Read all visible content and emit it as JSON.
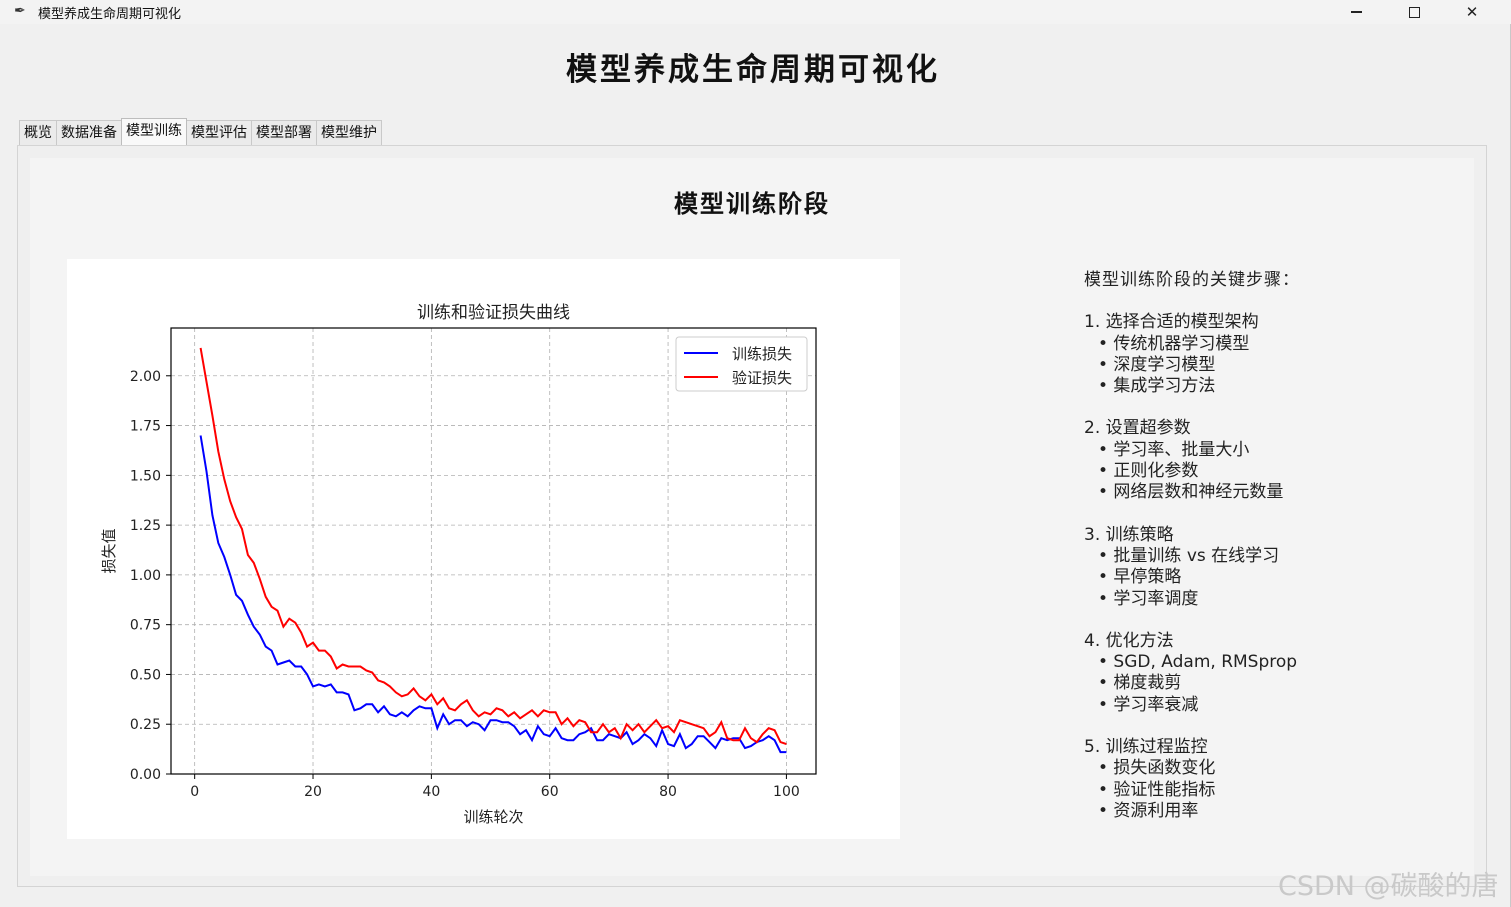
{
  "window": {
    "title": "模型养成生命周期可视化",
    "icon": "feather-icon"
  },
  "app": {
    "title": "模型养成生命周期可视化"
  },
  "tabs": [
    {
      "label": "概览",
      "active": false
    },
    {
      "label": "数据准备",
      "active": false
    },
    {
      "label": "模型训练",
      "active": true
    },
    {
      "label": "模型评估",
      "active": false
    },
    {
      "label": "模型部署",
      "active": false
    },
    {
      "label": "模型维护",
      "active": false
    }
  ],
  "stage": {
    "title": "模型训练阶段"
  },
  "chart_data": {
    "type": "line",
    "title": "训练和验证损失曲线",
    "xlabel": "训练轮次",
    "ylabel": "损失值",
    "xlim": [
      -4,
      105
    ],
    "ylim": [
      0,
      2.24
    ],
    "xticks": [
      0,
      20,
      40,
      60,
      80,
      100
    ],
    "xtick_labels": [
      "0",
      "20",
      "40",
      "60",
      "80",
      "100"
    ],
    "yticks": [
      0,
      0.25,
      0.5,
      0.75,
      1.0,
      1.25,
      1.5,
      1.75,
      2.0
    ],
    "ytick_labels": [
      "0.00",
      "0.25",
      "0.50",
      "0.75",
      "1.00",
      "1.25",
      "1.50",
      "1.75",
      "2.00"
    ],
    "grid": true,
    "legend": "top-right",
    "x": [
      1,
      2,
      3,
      4,
      5,
      6,
      7,
      8,
      9,
      10,
      11,
      12,
      13,
      14,
      15,
      16,
      17,
      18,
      19,
      20,
      21,
      22,
      23,
      24,
      25,
      26,
      27,
      28,
      29,
      30,
      31,
      32,
      33,
      34,
      35,
      36,
      37,
      38,
      39,
      40,
      41,
      42,
      43,
      44,
      45,
      46,
      47,
      48,
      49,
      50,
      51,
      52,
      53,
      54,
      55,
      56,
      57,
      58,
      59,
      60,
      61,
      62,
      63,
      64,
      65,
      66,
      67,
      68,
      69,
      70,
      71,
      72,
      73,
      74,
      75,
      76,
      77,
      78,
      79,
      80,
      81,
      82,
      83,
      84,
      85,
      86,
      87,
      88,
      89,
      90,
      91,
      92,
      93,
      94,
      95,
      96,
      97,
      98,
      99,
      100
    ],
    "series": [
      {
        "name": "训练损失",
        "color": "#0000ff",
        "values": [
          1.7,
          1.52,
          1.3,
          1.16,
          1.09,
          1.0,
          0.9,
          0.87,
          0.8,
          0.74,
          0.7,
          0.64,
          0.62,
          0.55,
          0.56,
          0.57,
          0.54,
          0.54,
          0.5,
          0.44,
          0.45,
          0.44,
          0.45,
          0.41,
          0.41,
          0.4,
          0.32,
          0.33,
          0.35,
          0.35,
          0.31,
          0.34,
          0.3,
          0.29,
          0.31,
          0.29,
          0.32,
          0.34,
          0.33,
          0.33,
          0.23,
          0.3,
          0.25,
          0.27,
          0.27,
          0.24,
          0.26,
          0.25,
          0.22,
          0.27,
          0.27,
          0.26,
          0.26,
          0.24,
          0.2,
          0.22,
          0.17,
          0.24,
          0.2,
          0.19,
          0.23,
          0.18,
          0.17,
          0.17,
          0.2,
          0.21,
          0.23,
          0.17,
          0.17,
          0.2,
          0.19,
          0.18,
          0.21,
          0.15,
          0.17,
          0.2,
          0.18,
          0.14,
          0.22,
          0.15,
          0.14,
          0.2,
          0.13,
          0.15,
          0.19,
          0.19,
          0.16,
          0.13,
          0.18,
          0.17,
          0.18,
          0.18,
          0.13,
          0.14,
          0.16,
          0.17,
          0.19,
          0.17,
          0.11,
          0.11
        ]
      },
      {
        "name": "验证损失",
        "color": "#ff0000",
        "values": [
          2.14,
          1.97,
          1.8,
          1.62,
          1.48,
          1.37,
          1.29,
          1.23,
          1.1,
          1.06,
          0.98,
          0.89,
          0.84,
          0.82,
          0.74,
          0.78,
          0.76,
          0.71,
          0.64,
          0.66,
          0.62,
          0.62,
          0.59,
          0.53,
          0.55,
          0.54,
          0.54,
          0.54,
          0.52,
          0.51,
          0.47,
          0.46,
          0.44,
          0.41,
          0.39,
          0.4,
          0.43,
          0.39,
          0.37,
          0.4,
          0.35,
          0.38,
          0.33,
          0.32,
          0.35,
          0.37,
          0.32,
          0.29,
          0.31,
          0.3,
          0.33,
          0.32,
          0.29,
          0.31,
          0.28,
          0.3,
          0.32,
          0.29,
          0.32,
          0.31,
          0.31,
          0.25,
          0.28,
          0.24,
          0.27,
          0.26,
          0.21,
          0.21,
          0.25,
          0.21,
          0.23,
          0.18,
          0.25,
          0.22,
          0.25,
          0.21,
          0.24,
          0.27,
          0.23,
          0.24,
          0.21,
          0.27,
          0.26,
          0.25,
          0.24,
          0.23,
          0.19,
          0.21,
          0.26,
          0.18,
          0.17,
          0.17,
          0.23,
          0.18,
          0.16,
          0.2,
          0.23,
          0.22,
          0.16,
          0.15
        ]
      }
    ]
  },
  "steps": {
    "heading": "模型训练阶段的关键步骤：",
    "groups": [
      {
        "title": "1. 选择合适的模型架构",
        "items": [
          "• 传统机器学习模型",
          "• 深度学习模型",
          "• 集成学习方法"
        ]
      },
      {
        "title": "2. 设置超参数",
        "items": [
          "• 学习率、批量大小",
          "• 正则化参数",
          "• 网络层数和神经元数量"
        ]
      },
      {
        "title": "3. 训练策略",
        "items": [
          "• 批量训练 vs 在线学习",
          "• 早停策略",
          "• 学习率调度"
        ]
      },
      {
        "title": "4. 优化方法",
        "items": [
          "• SGD, Adam, RMSprop",
          "• 梯度裁剪",
          "• 学习率衰减"
        ]
      },
      {
        "title": "5. 训练过程监控",
        "items": [
          "• 损失函数变化",
          "• 验证性能指标",
          "• 资源利用率"
        ]
      }
    ]
  },
  "watermark": "CSDN @碳酸的唐"
}
